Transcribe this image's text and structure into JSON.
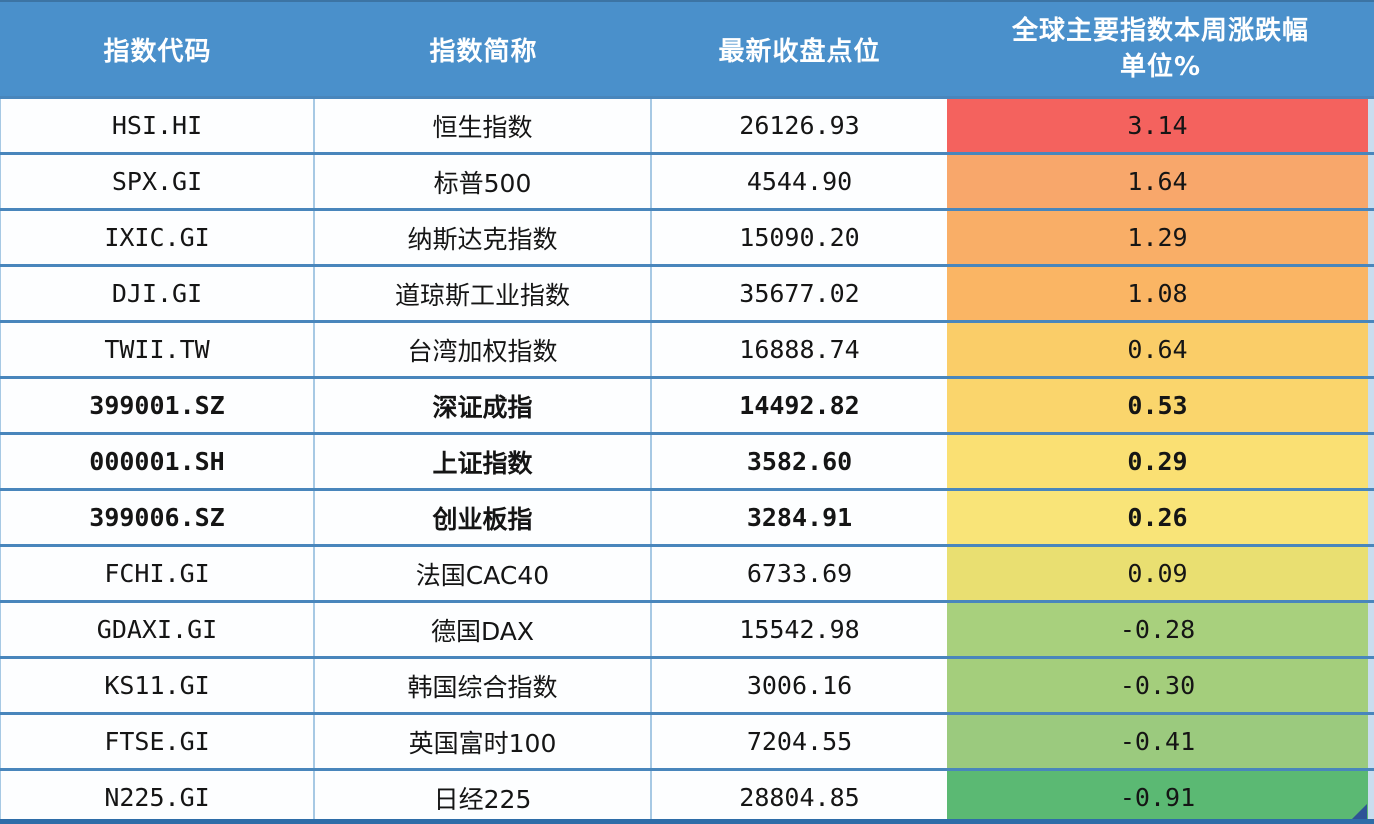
{
  "header": {
    "col_code": "指数代码",
    "col_name": "指数简称",
    "col_close": "最新收盘点位",
    "col_change_line1": "全球主要指数本周涨跌幅",
    "col_change_line2": "单位%"
  },
  "colors": {
    "header_bg": "#4A90CB",
    "header_text": "#FFFFFF",
    "row_separator": "#4986BC",
    "column_separator": "#A7C9E4",
    "right_edge_strip": "#C9DDEF",
    "bottom_border": "#2E6DA8",
    "corner_marker": "#2F5496",
    "body_text": "#151515"
  },
  "chart_data": {
    "type": "table",
    "title": "全球主要指数本周涨跌幅 单位%",
    "columns": [
      "指数代码",
      "指数简称",
      "最新收盘点位",
      "全球主要指数本周涨跌幅 单位%"
    ],
    "rows": [
      {
        "code": "HSI.HI",
        "name": "恒生指数",
        "close": "26126.93",
        "change": "3.14",
        "cell_color": "#F4625E",
        "bold": false
      },
      {
        "code": "SPX.GI",
        "name": "标普500",
        "close": "4544.90",
        "change": "1.64",
        "cell_color": "#F8A76B",
        "bold": false
      },
      {
        "code": "IXIC.GI",
        "name": "纳斯达克指数",
        "close": "15090.20",
        "change": "1.29",
        "cell_color": "#F9AE67",
        "bold": false
      },
      {
        "code": "DJI.GI",
        "name": "道琼斯工业指数",
        "close": "35677.02",
        "change": "1.08",
        "cell_color": "#FAB564",
        "bold": false
      },
      {
        "code": "TWII.TW",
        "name": "台湾加权指数",
        "close": "16888.74",
        "change": "0.64",
        "cell_color": "#FACD68",
        "bold": false
      },
      {
        "code": "399001.SZ",
        "name": "深证成指",
        "close": "14492.82",
        "change": "0.53",
        "cell_color": "#FAD56C",
        "bold": true
      },
      {
        "code": "000001.SH",
        "name": "上证指数",
        "close": "3582.60",
        "change": "0.29",
        "cell_color": "#FAE073",
        "bold": true
      },
      {
        "code": "399006.SZ",
        "name": "创业板指",
        "close": "3284.91",
        "change": "0.26",
        "cell_color": "#F9E478",
        "bold": true
      },
      {
        "code": "FCHI.GI",
        "name": "法国CAC40",
        "close": "6733.69",
        "change": "0.09",
        "cell_color": "#E9DF71",
        "bold": false
      },
      {
        "code": "GDAXI.GI",
        "name": "德国DAX",
        "close": "15542.98",
        "change": "-0.28",
        "cell_color": "#A8D07D",
        "bold": false
      },
      {
        "code": "KS11.GI",
        "name": "韩国综合指数",
        "close": "3006.16",
        "change": "-0.30",
        "cell_color": "#A4CE7C",
        "bold": false
      },
      {
        "code": "FTSE.GI",
        "name": "英国富时100",
        "close": "7204.55",
        "change": "-0.41",
        "cell_color": "#9BCA7E",
        "bold": false
      },
      {
        "code": "N225.GI",
        "name": "日经225",
        "close": "28804.85",
        "change": "-0.91",
        "cell_color": "#5BB973",
        "bold": false
      }
    ]
  }
}
